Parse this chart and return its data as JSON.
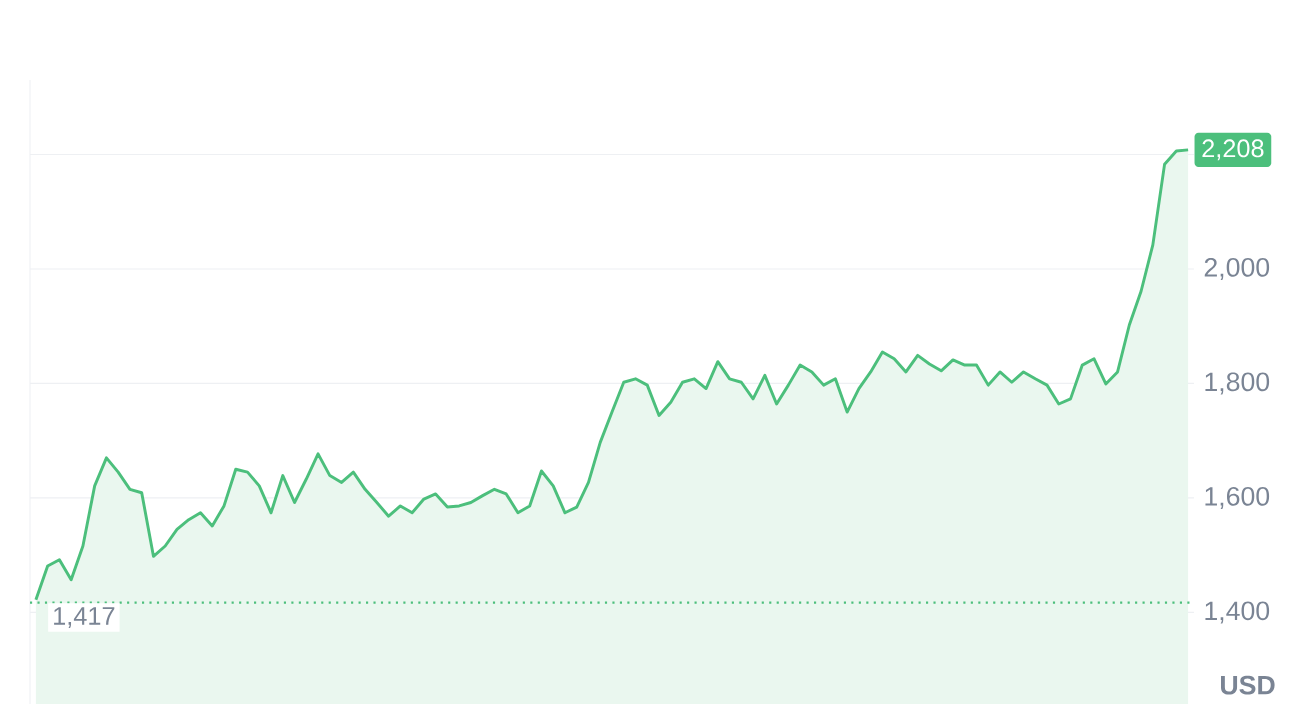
{
  "chart_data": {
    "type": "area",
    "ylabel": "USD",
    "categories": [
      null,
      null,
      null,
      null,
      null,
      null,
      null,
      null,
      null,
      null,
      null,
      null,
      null,
      null,
      null,
      null,
      null,
      null,
      null,
      null,
      null,
      null,
      null,
      null,
      null,
      null,
      null,
      null,
      null,
      null,
      null,
      null,
      null,
      null,
      null,
      null,
      null,
      null,
      null,
      null,
      null,
      null,
      null,
      null,
      null,
      null,
      null,
      null,
      null,
      null,
      null,
      null,
      null,
      null,
      null,
      null,
      null,
      null,
      null,
      null,
      null,
      null,
      null,
      null,
      null,
      null,
      null,
      null,
      null,
      null,
      null,
      null,
      null,
      null,
      null,
      null,
      null,
      null,
      null,
      null,
      null,
      null,
      null,
      null,
      null,
      null,
      null,
      null,
      null,
      null,
      null,
      null,
      null,
      null,
      null,
      null,
      null,
      null,
      null
    ],
    "values": [
      1422,
      1481,
      1492,
      1457,
      1516,
      1621,
      1670,
      1645,
      1615,
      1609,
      1498,
      1516,
      1545,
      1562,
      1574,
      1551,
      1586,
      1650,
      1645,
      1621,
      1574,
      1639,
      1592,
      1633,
      1677,
      1639,
      1627,
      1645,
      1615,
      1592,
      1568,
      1586,
      1574,
      1598,
      1607,
      1584,
      1586,
      1592,
      1604,
      1615,
      1607,
      1574,
      1586,
      1647,
      1621,
      1574,
      1584,
      1627,
      1697,
      1750,
      1802,
      1808,
      1797,
      1744,
      1767,
      1802,
      1808,
      1791,
      1838,
      1808,
      1802,
      1773,
      1814,
      1764,
      1797,
      1832,
      1820,
      1797,
      1808,
      1750,
      1791,
      1820,
      1855,
      1843,
      1820,
      1849,
      1834,
      1822,
      1841,
      1832,
      1832,
      1797,
      1820,
      1802,
      1820,
      1808,
      1797,
      1764,
      1773,
      1832,
      1843,
      1799,
      1820,
      1902,
      1961,
      2042,
      2183,
      2206,
      2208
    ],
    "color": "#4cbf7c",
    "ylim": [
      1240,
      2330
    ],
    "yticks": [
      {
        "value": 1400,
        "label": "1,400"
      },
      {
        "value": 1600,
        "label": "1,600"
      },
      {
        "value": 1800,
        "label": "1,800"
      },
      {
        "value": 2000,
        "label": "2,000"
      },
      {
        "value": 2200,
        "label": null
      }
    ],
    "grid": "y",
    "ref_lines": [
      {
        "axis": "y",
        "value": 1417,
        "label": "1,417",
        "color": "#4cbf7c",
        "line_style": "dotted"
      }
    ],
    "annotations": [
      {
        "text": "2,208",
        "y": 2208
      }
    ]
  }
}
